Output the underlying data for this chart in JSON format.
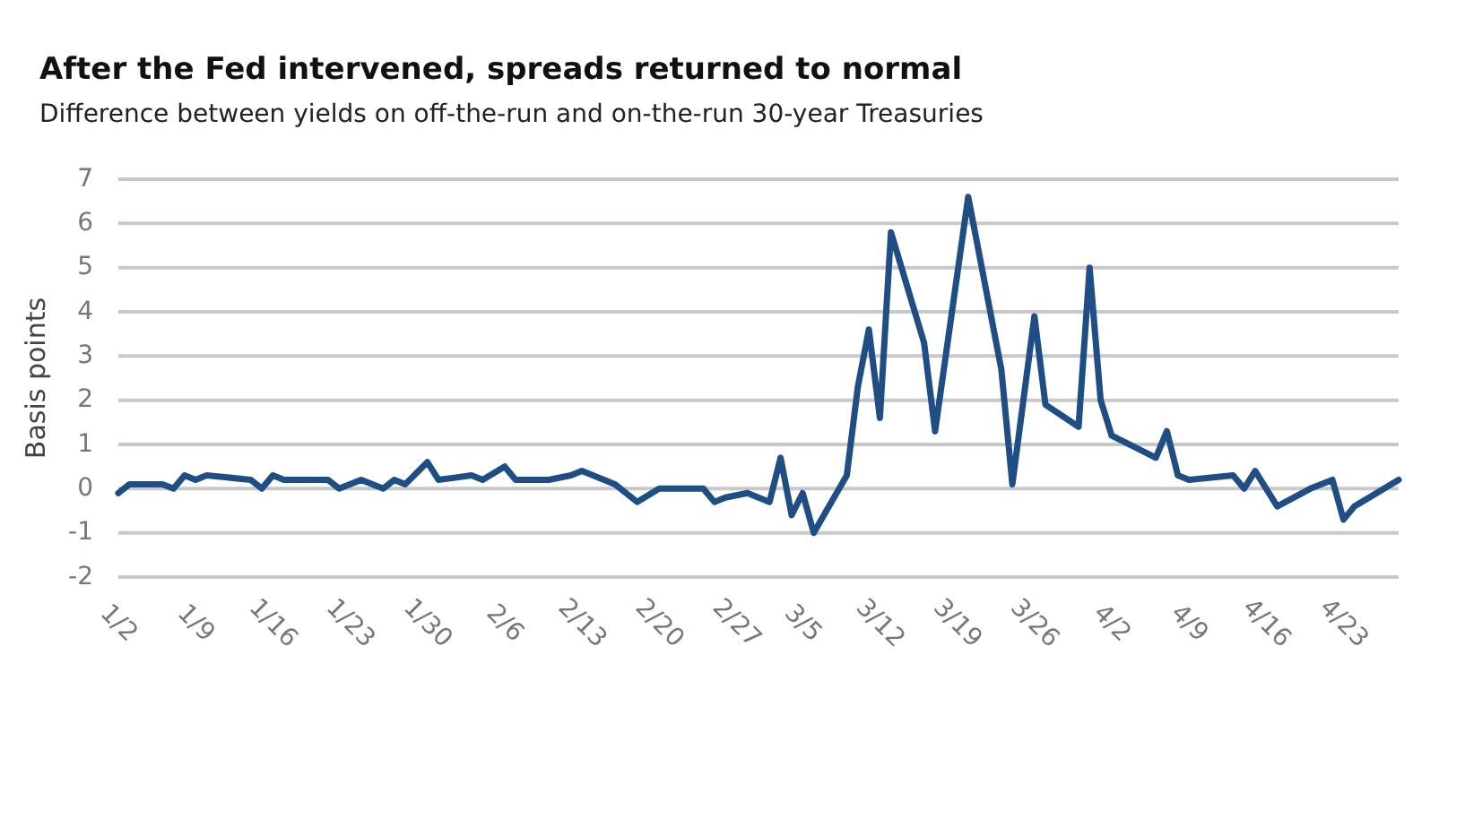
{
  "chart_data": {
    "type": "line",
    "title": "After the Fed intervened, spreads returned to normal",
    "subtitle": "Difference between yields on off-the-run and on-the-run 30-year Treasuries",
    "ylabel": "Basis points",
    "x": [
      "--01-02",
      "--01-03",
      "--01-05",
      "--01-06",
      "--01-07",
      "--01-08",
      "--01-09",
      "--01-10",
      "--01-14",
      "--01-15",
      "--01-16",
      "--01-17",
      "--01-21",
      "--01-22",
      "--01-24",
      "--01-26",
      "--01-27",
      "--01-28",
      "--01-30",
      "--01-31",
      "--02-03",
      "--02-04",
      "--02-06",
      "--02-07",
      "--02-10",
      "--02-12",
      "--02-13",
      "--02-16",
      "--02-18",
      "--02-20",
      "--02-24",
      "--02-25",
      "--02-26",
      "--02-28",
      "--03-02",
      "--03-03",
      "--03-04",
      "--03-05",
      "--03-06",
      "--03-09",
      "--03-10",
      "--03-11",
      "--03-12",
      "--03-13",
      "--03-16",
      "--03-17",
      "--03-20",
      "--03-23",
      "--03-24",
      "--03-26",
      "--03-27",
      "--03-30",
      "--03-31",
      "--04-01",
      "--04-02",
      "--04-06",
      "--04-07",
      "--04-08",
      "--04-09",
      "--04-13",
      "--04-14",
      "--04-15",
      "--04-17",
      "--04-20",
      "--04-22",
      "--04-23",
      "--04-24",
      "--04-28"
    ],
    "series": [
      {
        "color": "#1f4e84",
        "values": [
          -0.1,
          0.1,
          0.1,
          0.1,
          0,
          0.3,
          0.2,
          0.3,
          0.2,
          0,
          0.3,
          0.2,
          0.2,
          0,
          0.2,
          0,
          0.2,
          0.1,
          0.6,
          0.2,
          0.3,
          0.2,
          0.5,
          0.2,
          0.2,
          0.3,
          0.4,
          0.1,
          -0.3,
          0,
          0,
          -0.3,
          -0.2,
          -0.1,
          -0.3,
          0.7,
          -0.6,
          -0.1,
          -1,
          0.3,
          2.3,
          3.6,
          1.6,
          5.8,
          3.3,
          1.3,
          6.6,
          2.7,
          0.1,
          3.9,
          1.9,
          1.4,
          5.0,
          2.0,
          1.2,
          0.7,
          1.3,
          0.3,
          0.2,
          0.3,
          0,
          0.4,
          -0.4,
          0,
          0.2,
          -0.7,
          -0.4,
          0.2
        ]
      }
    ],
    "xlim": [
      "--01-02",
      "--04-28"
    ],
    "xticks": [
      {
        "value": "--01-02",
        "label": "1/2"
      },
      {
        "value": "--01-09",
        "label": "1/9"
      },
      {
        "value": "--01-16",
        "label": "1/16"
      },
      {
        "value": "--01-23",
        "label": "1/23"
      },
      {
        "value": "--01-30",
        "label": "1/30"
      },
      {
        "value": "--02-06",
        "label": "2/6"
      },
      {
        "value": "--02-13",
        "label": "2/13"
      },
      {
        "value": "--02-20",
        "label": "2/20"
      },
      {
        "value": "--02-27",
        "label": "2/27"
      },
      {
        "value": "--03-05",
        "label": "3/5"
      },
      {
        "value": "--03-12",
        "label": "3/12"
      },
      {
        "value": "--03-19",
        "label": "3/19"
      },
      {
        "value": "--03-26",
        "label": "3/26"
      },
      {
        "value": "--04-02",
        "label": "4/2"
      },
      {
        "value": "--04-09",
        "label": "4/9"
      },
      {
        "value": "--04-16",
        "label": "4/16"
      },
      {
        "value": "--04-23",
        "label": "4/23"
      }
    ],
    "ylim": [
      -2,
      7
    ],
    "yticks": [
      -2,
      -1,
      0,
      1,
      2,
      3,
      4,
      5,
      6,
      7
    ],
    "grid": "y",
    "line_style": "solid",
    "marker": "none"
  }
}
